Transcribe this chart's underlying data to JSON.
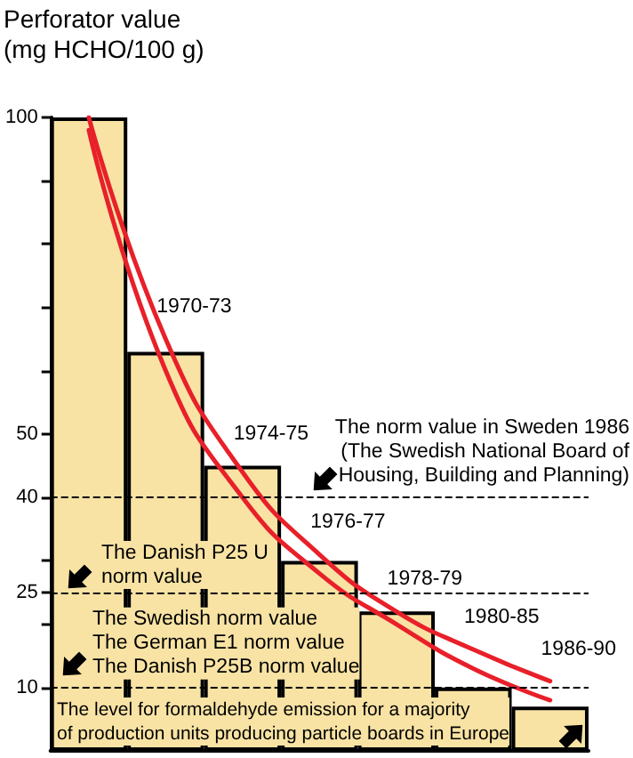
{
  "chart_data": {
    "type": "bar",
    "ylabel": "Perforator value\n(mg HCHO/100 g)",
    "categories": [
      null,
      "1970-73",
      "1974-75",
      "1976-77",
      "1978-79",
      "1980-85",
      "1986-90"
    ],
    "series": [
      {
        "color": "#f8e3a4",
        "values": [
          100,
          63,
          45,
          30,
          22,
          10,
          7
        ]
      },
      {
        "type": "line",
        "color": "#e8202a",
        "values": [
          100,
          65,
          44,
          31,
          22,
          16,
          11
        ]
      },
      {
        "type": "line",
        "color": "#e8202a",
        "values": [
          98,
          60,
          40,
          28,
          20,
          13,
          8
        ]
      }
    ],
    "ylim": [
      0,
      100
    ],
    "yticks": [
      {
        "value": 10,
        "label": "10"
      },
      {
        "value": 20,
        "label": null
      },
      {
        "value": 25,
        "label": "25"
      },
      {
        "value": 30,
        "label": null
      },
      {
        "value": 40,
        "label": "40"
      },
      {
        "value": 50,
        "label": "50"
      },
      {
        "value": 60,
        "label": null
      },
      {
        "value": 70,
        "label": null
      },
      {
        "value": 80,
        "label": null
      },
      {
        "value": 90,
        "label": null
      },
      {
        "value": 100,
        "label": "100"
      }
    ],
    "ref_lines": [
      {
        "axis": "y",
        "value": 40,
        "label": "The norm value in Sweden 1986\n(The Swedish National Board of\nHousing, Building and Planning)",
        "color": "#000000",
        "line_style": "dashed"
      },
      {
        "axis": "y",
        "value": 25,
        "label": "The Danish P25 U\nnorm value",
        "color": "#000000",
        "line_style": "dashed"
      },
      {
        "axis": "y",
        "value": 10,
        "label": "The Swedish norm value\nThe German E1 norm value\nThe Danish P25B norm value",
        "color": "#000000",
        "line_style": "dashed"
      }
    ],
    "annotations": [
      "The level for formaldehyde emission for a majority\nof production units producing particle boards in Europe"
    ],
    "marker": "none"
  }
}
